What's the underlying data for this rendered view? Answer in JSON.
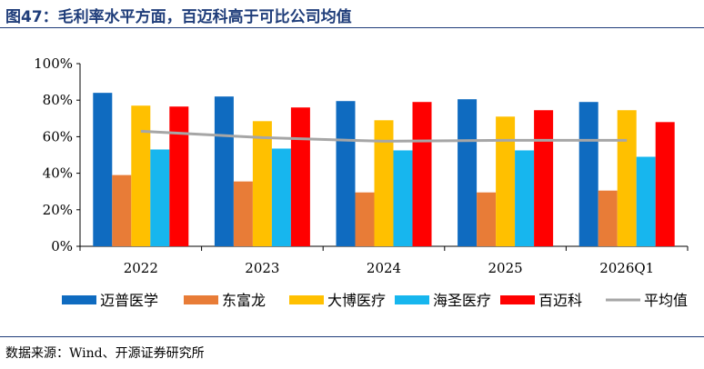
{
  "figure": {
    "title": "图47：毛利率水平方面，百迈科高于可比公司均值",
    "source": "数据来源：Wind、开源证券研究所"
  },
  "chart_data": {
    "type": "bar",
    "categories": [
      "2022",
      "2023",
      "2024",
      "2025",
      "2026Q1"
    ],
    "ylim": [
      0,
      100
    ],
    "yticks": [
      "0%",
      "20%",
      "40%",
      "60%",
      "80%",
      "100%"
    ],
    "grid": false,
    "legend": "bottom",
    "series": [
      {
        "name": "迈普医学",
        "type": "bar",
        "color": "#0f6bc0",
        "values": [
          84,
          82,
          79.5,
          80.5,
          79
        ]
      },
      {
        "name": "东富龙",
        "type": "bar",
        "color": "#e87c37",
        "values": [
          39,
          35.5,
          29.5,
          29.5,
          30.5
        ]
      },
      {
        "name": "大博医疗",
        "type": "bar",
        "color": "#ffc000",
        "values": [
          77,
          68.5,
          69,
          71,
          74.5
        ]
      },
      {
        "name": "海圣医疗",
        "type": "bar",
        "color": "#17b6ee",
        "values": [
          53,
          53.5,
          52.5,
          52.5,
          49
        ]
      },
      {
        "name": "百迈科",
        "type": "bar",
        "color": "#ff0000",
        "values": [
          76.5,
          76,
          79,
          74.5,
          68
        ]
      },
      {
        "name": "平均值",
        "type": "line",
        "color": "#a6a6a6",
        "values": [
          63,
          59.5,
          57.5,
          58,
          58
        ]
      }
    ]
  }
}
